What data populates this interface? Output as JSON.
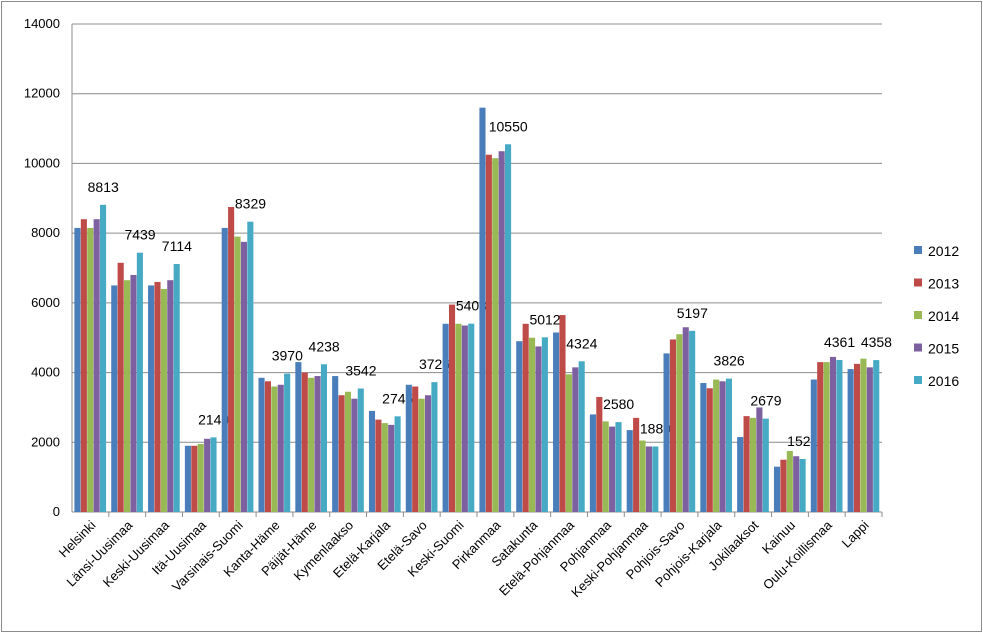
{
  "chart_data": {
    "type": "bar",
    "categories": [
      "Helsinki",
      "Länsi-Uusimaa",
      "Keski-Uusimaa",
      "Itä-Uusimaa",
      "Varsinais-Suomi",
      "Kanta-Häme",
      "Päijät-Häme",
      "Kymenlaakso",
      "Etelä-Karjala",
      "Etelä-Savo",
      "Keski-Suomi",
      "Pirkanmaa",
      "Satakunta",
      "Etelä-Pohjanmaa",
      "Pohjanmaa",
      "Keski-Pohjanmaa",
      "Pohjois-Savo",
      "Pohjois-Karjala",
      "Jokilaaksot",
      "Kainuu",
      "Oulu-Koillismaa",
      "Lappi"
    ],
    "series": [
      {
        "name": "2012",
        "color": "#4a7ebb",
        "values": [
          8150,
          6500,
          6500,
          1900,
          8150,
          3850,
          4300,
          3900,
          2900,
          3650,
          5400,
          11600,
          4900,
          5150,
          2800,
          2350,
          4550,
          3700,
          2150,
          1300,
          3800,
          4100
        ]
      },
      {
        "name": "2013",
        "color": "#be4b48",
        "values": [
          8400,
          7150,
          6600,
          1900,
          8750,
          3750,
          4000,
          3350,
          2650,
          3600,
          5950,
          10250,
          5400,
          5650,
          3300,
          2700,
          4950,
          3550,
          2750,
          1500,
          4300,
          4250
        ]
      },
      {
        "name": "2014",
        "color": "#98b954",
        "values": [
          8150,
          6650,
          6400,
          1950,
          7900,
          3600,
          3850,
          3450,
          2550,
          3250,
          5400,
          10150,
          5000,
          3950,
          2600,
          2050,
          5100,
          3800,
          2700,
          1750,
          4300,
          4400
        ]
      },
      {
        "name": "2015",
        "color": "#7d60a0",
        "values": [
          8400,
          6800,
          6650,
          2100,
          7750,
          3650,
          3900,
          3250,
          2500,
          3350,
          5350,
          10350,
          4750,
          4150,
          2450,
          1880,
          5300,
          3750,
          3000,
          1600,
          4450,
          4150
        ]
      },
      {
        "name": "2016",
        "color": "#46aac5",
        "values": [
          8813,
          7439,
          7114,
          2140,
          8329,
          3970,
          4238,
          3542,
          2745,
          3726,
          5403,
          10550,
          5012,
          4324,
          2580,
          1880,
          5197,
          3826,
          2679,
          1521,
          4361,
          4358
        ]
      }
    ],
    "data_labels": [
      "8813",
      "7439",
      "7114",
      "2140",
      "8329",
      "3970",
      "4238",
      "3542",
      "2745",
      "3726",
      "5403",
      "10550",
      "5012",
      "4324",
      "2580",
      "1880",
      "5197",
      "3826",
      "2679",
      "1521",
      "4361",
      "4358"
    ],
    "ylim": [
      0,
      14000
    ],
    "yticks": [
      "0",
      "2000",
      "4000",
      "6000",
      "8000",
      "10000",
      "12000",
      "14000"
    ],
    "grid": true,
    "legend": "right",
    "title": "",
    "xlabel": "",
    "ylabel": ""
  }
}
